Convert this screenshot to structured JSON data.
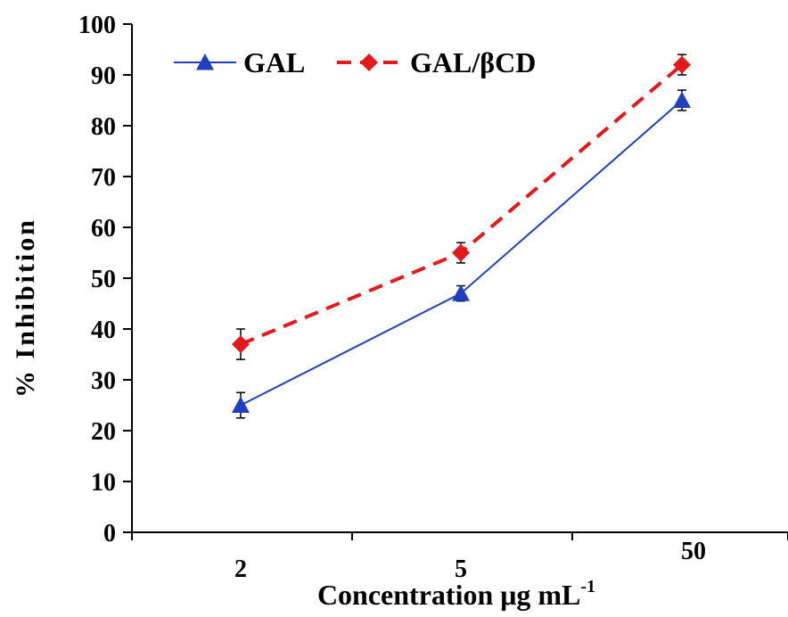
{
  "chart_data": {
    "type": "line",
    "title": "",
    "xlabel": "Concentration μg mL",
    "xlabel_superscript": "-1",
    "ylabel": "% Inhibition",
    "categories": [
      "2",
      "5",
      "50"
    ],
    "ylim": [
      0,
      100
    ],
    "yticks": [
      0,
      10,
      20,
      30,
      40,
      50,
      60,
      70,
      80,
      90,
      100
    ],
    "grid": false,
    "legend_position": "top-left",
    "series": [
      {
        "name": "GAL",
        "values": [
          25,
          47,
          85
        ],
        "errors": [
          2.5,
          1.5,
          2
        ],
        "color": "#1f3fbf",
        "marker": "triangle",
        "line_style": "solid"
      },
      {
        "name": "GAL/βCD",
        "values": [
          37,
          55,
          92
        ],
        "errors": [
          3,
          2,
          2
        ],
        "color": "#e31a1c",
        "marker": "diamond",
        "line_style": "dashed"
      }
    ]
  }
}
